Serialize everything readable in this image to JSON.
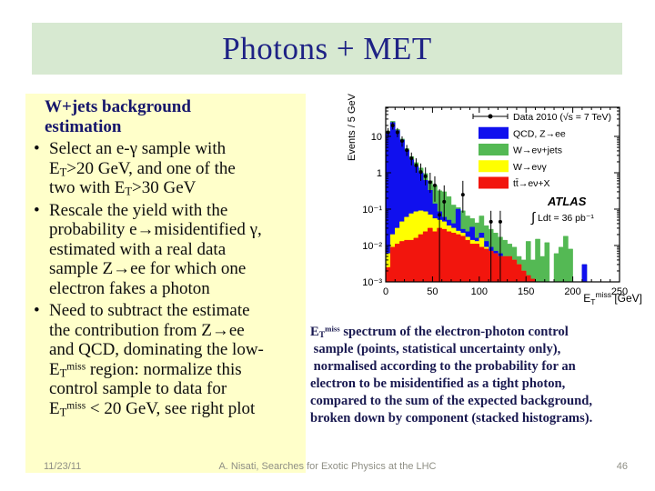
{
  "slide": {
    "title": "Photons + MET"
  },
  "note_box": {
    "bullet_char": "•",
    "heading": "W+jets background\nestimation",
    "bullets": [
      "Select an e-γ sample with\nE_{T}>20 GeV, and one of the\ntwo with E_{T}>30 GeV",
      "Rescale the yield with the\nprobability e→misidentified γ,\nestimated with a real data\nsample Z→ee for which one\nelectron fakes a photon",
      "Need to subtract the estimate\nthe contribution from Z→ee\nand QCD, dominating the low-\nE_{T}^{miss} region: normalize this\ncontrol sample to data for\nE_{T}^{miss} < 20 GeV, see right plot"
    ]
  },
  "caption": "E_{T}^{miss} spectrum of the electron-photon control\n sample (points, statistical uncertainty only),\n normalised according to the probability for an\nelectron to be misidentified as a tight photon,\ncompared to the sum of the expected background,\nbroken down by component (stacked histograms).",
  "footer": {
    "date": "11/23/11",
    "credit": "A. Nisati, Searches for Exotic Physics at the LHC",
    "page": "46"
  },
  "chart_data": {
    "type": "bar",
    "subtype": "stacked-histogram-log-y",
    "ylabel": "Events / 5 GeV",
    "xlabel_parts": {
      "pre": "E",
      "sub": "T",
      "sup": "miss",
      "post": " [GeV]"
    },
    "xlim": [
      0,
      250
    ],
    "ylim_log10": [
      -3,
      1.8
    ],
    "bin_width_gev": 5,
    "x_major_ticks": [
      0,
      50,
      100,
      150,
      200,
      250
    ],
    "x_minor_step": 10,
    "y_decade_labels": [
      {
        "decade": 1,
        "label": "10"
      },
      {
        "decade": 0,
        "label": "1"
      },
      {
        "decade": -1,
        "label": "10⁻¹"
      },
      {
        "decade": -2,
        "label": "10⁻²"
      },
      {
        "decade": -3,
        "label": "10⁻³"
      }
    ],
    "experiment": "ATLAS",
    "luminosity": "∫ Ldt = 36 pb⁻¹",
    "legend": [
      {
        "label": "Data 2010 (√s = 7 TeV)",
        "type": "marker"
      },
      {
        "label": "QCD, Z→ee",
        "type": "box",
        "color": "#1010ee"
      },
      {
        "label": "W→eν+jets",
        "type": "box",
        "color": "#54b954"
      },
      {
        "label": "W→eνγ",
        "type": "box",
        "color": "#ffff00"
      },
      {
        "label": "tt̄→eν+X",
        "type": "box",
        "color": "#f2150d"
      }
    ],
    "stack_note": "values are cumulative stacked upper edges per 5 GeV bin (events / 5 GeV), drawn painter-style in listed order",
    "stack_layers": [
      {
        "name": "W→eν+jets (stack total)",
        "color": "#54b954",
        "tops": [
          14,
          26,
          15.5,
          8.5,
          4.6,
          2.8,
          1.9,
          1.35,
          0.95,
          0.6,
          0.45,
          0.32,
          0.3,
          0.22,
          0.13,
          0.11,
          0.09,
          0.065,
          0.055,
          0.042,
          0.065,
          0.035,
          0.028,
          0.022,
          0.017,
          0.014,
          0.011,
          0.009,
          0.005,
          0.004,
          0.013,
          0.004,
          0.015,
          0.005,
          0.012,
          0.0008,
          0.006,
          0.009,
          0.018,
          0.008,
          0.0008,
          0.0008,
          0.003,
          0.0008,
          0.0008,
          0.0008,
          0.0008,
          0.0008,
          0.0008,
          0.0008
        ]
      },
      {
        "name": "QCD, Z→ee",
        "color": "#1010ee",
        "tops": [
          13,
          24,
          14.5,
          8,
          4.2,
          2.3,
          1.5,
          1.0,
          0.62,
          0.33,
          0.14,
          0.085,
          0.06,
          0.05,
          0.04,
          0.1,
          0.028,
          0.024,
          0.032,
          0.016,
          0.022,
          0.013,
          0.009,
          0.007,
          0.006,
          0.005,
          0.005,
          0.004,
          0.003,
          0.002,
          0.001,
          0.001,
          0.001,
          0.001,
          0.001,
          0.0008,
          0.0008,
          0.0008,
          0.0008,
          0.0008,
          0.0008,
          0.0008,
          0.003,
          0.0008,
          0.0008,
          0.0008,
          0.0008,
          0.0008,
          0.0008,
          0.0008
        ]
      },
      {
        "name": "W→eνγ",
        "color": "#ffff00",
        "tops": [
          0.006,
          0.02,
          0.03,
          0.045,
          0.06,
          0.075,
          0.085,
          0.09,
          0.085,
          0.07,
          0.055,
          0.05,
          0.045,
          0.035,
          0.03,
          0.025,
          0.022,
          0.017,
          0.014,
          0.013,
          0.016,
          0.009,
          0.007,
          0.006,
          0.005,
          0.005,
          0.005,
          0.004,
          0.003,
          0.002,
          0.001,
          0.001,
          0.001,
          0.001,
          0.001,
          0.0008,
          0.0008,
          0.0008,
          0.0008,
          0.0008,
          0.0008,
          0.0008,
          0.0008,
          0.0008,
          0.0008,
          0.0008,
          0.0008,
          0.0008,
          0.0008,
          0.0008
        ]
      },
      {
        "name": "tt̄→eν+X",
        "color": "#f2150d",
        "tops": [
          0.0025,
          0.009,
          0.011,
          0.013,
          0.014,
          0.014,
          0.016,
          0.02,
          0.024,
          0.03,
          0.024,
          0.03,
          0.028,
          0.024,
          0.022,
          0.02,
          0.018,
          0.014,
          0.011,
          0.011,
          0.009,
          0.008,
          0.007,
          0.006,
          0.005,
          0.005,
          0.005,
          0.004,
          0.003,
          0.002,
          0.0015,
          0.0012,
          0.001,
          0.001,
          0.001,
          0.001,
          0.0008,
          0.0008,
          0.0008,
          0.0008,
          0.0008,
          0.0008,
          0.0008,
          0.0008,
          0.0008,
          0.0008,
          0.0008,
          0.0008,
          0.0008,
          0.0008
        ]
      }
    ],
    "data_points": [
      {
        "x": 2.5,
        "y": 13,
        "lo": 9.5,
        "hi": 17
      },
      {
        "x": 7.5,
        "y": 20,
        "lo": 15.5,
        "hi": 25
      },
      {
        "x": 12.5,
        "y": 13,
        "lo": 9.5,
        "hi": 17
      },
      {
        "x": 17.5,
        "y": 7.5,
        "lo": 5.2,
        "hi": 10
      },
      {
        "x": 22.5,
        "y": 4.2,
        "lo": 2.9,
        "hi": 5.8
      },
      {
        "x": 27.5,
        "y": 2.5,
        "lo": 1.6,
        "hi": 3.6
      },
      {
        "x": 32.5,
        "y": 1.6,
        "lo": 1.0,
        "hi": 2.5
      },
      {
        "x": 37.5,
        "y": 1.05,
        "lo": 0.6,
        "hi": 1.8
      },
      {
        "x": 42.5,
        "y": 0.8,
        "lo": 0.45,
        "hi": 1.4
      },
      {
        "x": 47.5,
        "y": 0.55,
        "lo": 0.28,
        "hi": 1.0
      },
      {
        "x": 52.5,
        "y": 0.45,
        "lo": 0.16,
        "hi": 0.8
      },
      {
        "x": 57.5,
        "y": 0.07,
        "lo": 0.001,
        "hi": 0.35
      },
      {
        "x": 62.5,
        "y": 0.16,
        "lo": 0.05,
        "hi": 0.45
      },
      {
        "x": 82.5,
        "y": 0.25,
        "lo": 0.08,
        "hi": 0.6
      },
      {
        "x": 112.5,
        "y": 0.045,
        "lo": 0.001,
        "hi": 0.09
      },
      {
        "x": 122.5,
        "y": 0.045,
        "lo": 0.001,
        "hi": 0.09
      }
    ]
  }
}
